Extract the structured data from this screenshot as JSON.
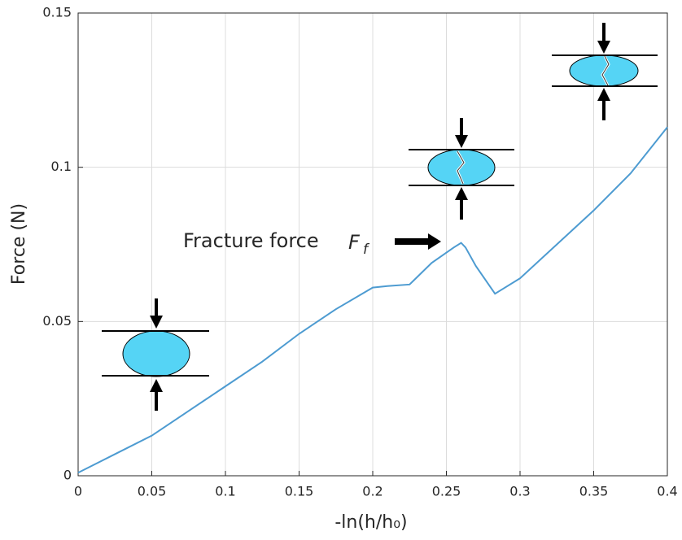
{
  "chart_data": {
    "type": "line",
    "xlabel": "-ln(h/h₀)",
    "ylabel": "Force (N)",
    "annotation": {
      "text": "Fracture force",
      "symbol": "F",
      "subscript": "f"
    },
    "x": [
      0,
      0.025,
      0.05,
      0.075,
      0.1,
      0.125,
      0.15,
      0.175,
      0.2,
      0.21,
      0.225,
      0.24,
      0.255,
      0.26,
      0.263,
      0.27,
      0.283,
      0.3,
      0.325,
      0.35,
      0.375,
      0.4
    ],
    "series": [
      {
        "color": "#4d9bd1",
        "values": [
          0.001,
          0.007,
          0.013,
          0.021,
          0.029,
          0.037,
          0.046,
          0.054,
          0.061,
          0.0615,
          0.062,
          0.069,
          0.074,
          0.0755,
          0.074,
          0.068,
          0.059,
          0.064,
          0.075,
          0.086,
          0.098,
          0.113
        ]
      }
    ],
    "xlim": [
      0,
      0.4
    ],
    "ylim": [
      0,
      0.15
    ],
    "xticks": [
      0,
      0.05,
      0.1,
      0.15,
      0.2,
      0.25,
      0.3,
      0.35,
      0.4
    ],
    "yticks": [
      0,
      0.05,
      0.1,
      0.15
    ],
    "grid": true
  }
}
